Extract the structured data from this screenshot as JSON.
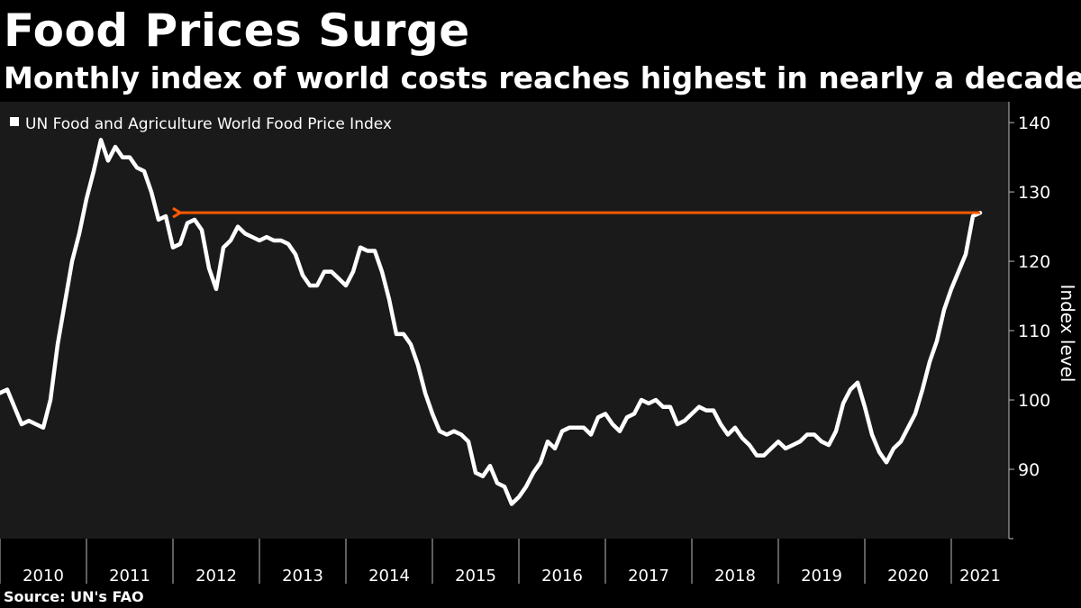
{
  "title": "Food Prices Surge",
  "subtitle": "Monthly index of world costs reaches highest in nearly a decade",
  "source": "Source: UN's FAO",
  "colors": {
    "background": "#000000",
    "plot_background": "#1a1a1a",
    "series": "#ffffff",
    "annotation_arrow": "#ff5a00"
  },
  "chart_data": {
    "type": "line",
    "title": "Food Prices Surge",
    "subtitle": "Monthly index of world costs reaches highest in nearly a decade",
    "ylabel": "Index level",
    "xlabel": "",
    "ylim": [
      80,
      143
    ],
    "xlim": [
      2010.0,
      2021.4
    ],
    "yticks": [
      90,
      100,
      110,
      120,
      130,
      140
    ],
    "year_labels": [
      "2010",
      "2011",
      "2012",
      "2013",
      "2014",
      "2015",
      "2016",
      "2017",
      "2018",
      "2019",
      "2020",
      "2021"
    ],
    "legend": {
      "entries": [
        "UN Food and Agriculture World Food Price Index"
      ],
      "position": "top-left"
    },
    "grid": false,
    "annotation": {
      "type": "arrow",
      "from_date": "2021-05",
      "to_date": "2012-02",
      "value": 127
    },
    "series": [
      {
        "name": "UN Food and Agriculture World Food Price Index",
        "start": "2010-01",
        "frequency": "monthly",
        "values": [
          101,
          101.5,
          99,
          96.5,
          97,
          96.5,
          96,
          100,
          108,
          114,
          120,
          124,
          129,
          133,
          137.5,
          134.5,
          136.5,
          135,
          135,
          133.5,
          133,
          130,
          126,
          126.5,
          122,
          122.5,
          125.5,
          126,
          124.5,
          119,
          116,
          122,
          123,
          125,
          124,
          123.5,
          123,
          123.5,
          123,
          123,
          122.5,
          121,
          118,
          116.5,
          116.5,
          118.5,
          118.5,
          117.5,
          116.5,
          118.5,
          122,
          121.5,
          121.5,
          118.5,
          114.5,
          109.5,
          109.5,
          108,
          105,
          101,
          98,
          95.5,
          95,
          95.5,
          95,
          94,
          89.5,
          89,
          90.5,
          88,
          87.5,
          85,
          86,
          87.5,
          89.5,
          91,
          94,
          93,
          95.5,
          96,
          96,
          96,
          95,
          97.5,
          98,
          96.5,
          95.5,
          97.5,
          98,
          100,
          99.5,
          100,
          99,
          99,
          96.5,
          97,
          98,
          99,
          98.5,
          98.5,
          96.5,
          95,
          96,
          94.5,
          93.5,
          92,
          92,
          93,
          94,
          93,
          93.5,
          94,
          95,
          95,
          94,
          93.5,
          95.5,
          99.5,
          101.5,
          102.5,
          99,
          95,
          92.5,
          91,
          93,
          94,
          96,
          98,
          101.5,
          105.5,
          108.5,
          113,
          116,
          118.5,
          121,
          126.5,
          127
        ]
      }
    ]
  }
}
